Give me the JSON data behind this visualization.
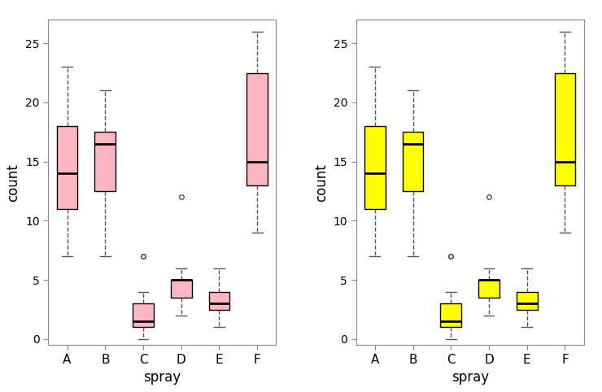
{
  "categories": [
    "A",
    "B",
    "C",
    "D",
    "E",
    "F"
  ],
  "box_stats": {
    "A": {
      "whislo": 7,
      "q1": 11,
      "med": 14,
      "q3": 18,
      "whishi": 23,
      "fliers": []
    },
    "B": {
      "whislo": 7,
      "q1": 12.5,
      "med": 16.5,
      "q3": 17.5,
      "whishi": 21,
      "fliers": []
    },
    "C": {
      "whislo": 0,
      "q1": 1,
      "med": 1.5,
      "q3": 3,
      "whishi": 4,
      "fliers": [
        7,
        7
      ]
    },
    "D": {
      "whislo": 2,
      "q1": 3.5,
      "med": 5,
      "q3": 5,
      "whishi": 6,
      "fliers": [
        12
      ]
    },
    "E": {
      "whislo": 1,
      "q1": 2.5,
      "med": 3,
      "q3": 4,
      "whishi": 6,
      "fliers": []
    },
    "F": {
      "whislo": 9,
      "q1": 13,
      "med": 15,
      "q3": 22.5,
      "whishi": 26,
      "fliers": []
    }
  },
  "color_left": "#FFB6C1",
  "color_right": "#FFFF00",
  "ylabel": "count",
  "xlabel": "spray",
  "ylim": [
    -0.5,
    27
  ],
  "yticks": [
    0,
    5,
    10,
    15,
    20,
    25
  ],
  "bg_color": "#FFFFFF",
  "panel_bg": "#FFFFFF",
  "median_color": "#000000",
  "box_edge_color": "#000000",
  "whisker_color": "#555555",
  "cap_color": "#555555",
  "flier_color": "#555555",
  "spine_color": "#888888",
  "figsize": [
    7.4,
    4.82
  ],
  "dpi": 100
}
